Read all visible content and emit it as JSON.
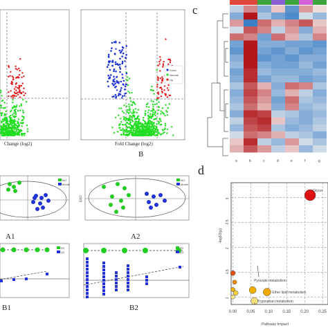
{
  "panel_labels": {
    "c": "c",
    "d": "d",
    "B": "B",
    "A1": "A1",
    "A2": "A2",
    "B1": "B1",
    "B2": "B2"
  },
  "volcano": {
    "x_label": "Fold Change (log2)",
    "x_label_left": "Change (log2)",
    "legend": [
      "Down",
      "Normal",
      "Up"
    ],
    "colors": {
      "normal": "#22dd22",
      "up": "#e31a1c",
      "down": "#1f33d6"
    }
  },
  "heatmap": {
    "header_colors": [
      "#e0453a",
      "#e0453a",
      "#3da53d",
      "#8a5fd1",
      "#3da53d",
      "#d45fd8",
      "#3da53d"
    ],
    "col_labels": [
      "a",
      "b",
      "c",
      "d",
      "e",
      "f",
      "g"
    ],
    "low_color": "#3b7fc6",
    "mid_color": "#f5f2f0",
    "high_color": "#b2161b",
    "matrix": [
      [
        -0.3,
        0.5,
        -0.6,
        0.2,
        -0.8,
        0.4,
        0.1
      ],
      [
        -0.6,
        1.0,
        -0.4,
        -0.7,
        -0.9,
        -0.2,
        -0.5
      ],
      [
        0.4,
        -1.0,
        0.6,
        0.3,
        0.5,
        0.7,
        0.2
      ],
      [
        -0.2,
        0.7,
        0.5,
        -0.3,
        0.4,
        -0.6,
        0.3
      ],
      [
        0.6,
        0.5,
        -0.7,
        0.6,
        0.3,
        -0.4,
        0.5
      ],
      [
        -0.7,
        1.0,
        -0.6,
        -0.6,
        -0.7,
        -0.7,
        -0.8
      ],
      [
        -0.8,
        1.0,
        -0.7,
        -0.8,
        -0.6,
        -0.8,
        -0.7
      ],
      [
        -0.6,
        1.0,
        -0.8,
        -0.7,
        -0.8,
        -0.6,
        -0.6
      ],
      [
        -0.5,
        1.0,
        -0.6,
        -0.7,
        -0.7,
        -0.5,
        -0.7
      ],
      [
        -0.7,
        0.9,
        -0.5,
        -0.6,
        -0.6,
        -0.6,
        -0.5
      ],
      [
        -0.6,
        0.9,
        -0.7,
        -0.5,
        -0.5,
        -0.7,
        -0.6
      ],
      [
        -0.4,
        0.7,
        0.3,
        -0.6,
        0.6,
        0.5,
        -0.4
      ],
      [
        -0.6,
        0.8,
        0.5,
        -0.5,
        0.3,
        -0.3,
        -0.6
      ],
      [
        -0.5,
        0.7,
        0.4,
        -0.7,
        0.6,
        -0.4,
        -0.5
      ],
      [
        -0.4,
        0.6,
        0.3,
        -0.6,
        0.5,
        -0.5,
        -0.4
      ],
      [
        -0.6,
        0.9,
        0.8,
        -0.3,
        -0.4,
        -0.6,
        -0.5
      ],
      [
        -0.3,
        0.8,
        0.9,
        0.2,
        -0.5,
        -0.6,
        -0.4
      ],
      [
        -0.5,
        0.7,
        0.8,
        -0.4,
        -0.6,
        -0.5,
        -0.3
      ],
      [
        -0.2,
        0.6,
        0.5,
        0.3,
        -0.3,
        -0.4,
        -0.6
      ],
      [
        0.2,
        0.9,
        -0.3,
        -0.5,
        0.4,
        -0.2,
        -0.4
      ],
      [
        0.3,
        0.7,
        0.4,
        -0.3,
        0.2,
        -0.5,
        -0.2
      ]
    ]
  },
  "plsda": {
    "legend": [
      "MG",
      "Model"
    ],
    "colors": {
      "group1": "#22cc22",
      "group2": "#1f33d6"
    },
    "a2_ylabel": "t[2]O"
  },
  "permutation": {
    "legend": [
      "R2",
      "Q2"
    ],
    "colors": {
      "r2": "#22cc22",
      "q2": "#1f33d6"
    }
  },
  "pathway": {
    "y_label": "-log10(p)",
    "x_label": "Pathway Impact",
    "y_ticks": [
      "3",
      "2.5",
      "2",
      "1.5",
      "1"
    ],
    "x_ticks": [
      "0.00",
      "0.05",
      "0.10",
      "0.15",
      "0.20",
      "0.25"
    ],
    "xlim": [
      -0.005,
      0.265
    ],
    "ylim": [
      0.85,
      3.3
    ],
    "points": [
      {
        "label": "Glycerophospholipid metabolism",
        "shown_label": "Glycer",
        "impact": 0.215,
        "neglogp": 3.05,
        "size": 8,
        "color": "#dd1111"
      },
      {
        "label": "Pyruvate metabolism",
        "shown_label": "Pyruvate metabolism",
        "impact": 0.055,
        "neglogp": 1.14,
        "size": 5,
        "color": "#f0b000"
      },
      {
        "label": "Ether lipid metabolism",
        "shown_label": "Ether lipid metabolism",
        "impact": 0.095,
        "neglogp": 1.1,
        "size": 5.5,
        "color": "#f0a800"
      },
      {
        "label": "Tryptophan metabolism",
        "shown_label": "Tryptophan metabolism",
        "impact": 0.06,
        "neglogp": 0.92,
        "size": 5,
        "color": "#f7e27a"
      },
      {
        "label": "",
        "shown_label": "",
        "impact": 0.0,
        "neglogp": 1.48,
        "size": 3.5,
        "color": "#e05010"
      },
      {
        "label": "",
        "shown_label": "",
        "impact": 0.005,
        "neglogp": 1.3,
        "size": 3,
        "color": "#f08a00"
      },
      {
        "label": "",
        "shown_label": "",
        "impact": 0.0,
        "neglogp": 1.15,
        "size": 3,
        "color": "#f2b000"
      },
      {
        "label": "",
        "shown_label": "",
        "impact": 0.008,
        "neglogp": 1.08,
        "size": 3.5,
        "color": "#f5d040"
      },
      {
        "label": "",
        "shown_label": "",
        "impact": 0.0,
        "neglogp": 1.0,
        "size": 3,
        "color": "#f9e88a"
      }
    ]
  }
}
